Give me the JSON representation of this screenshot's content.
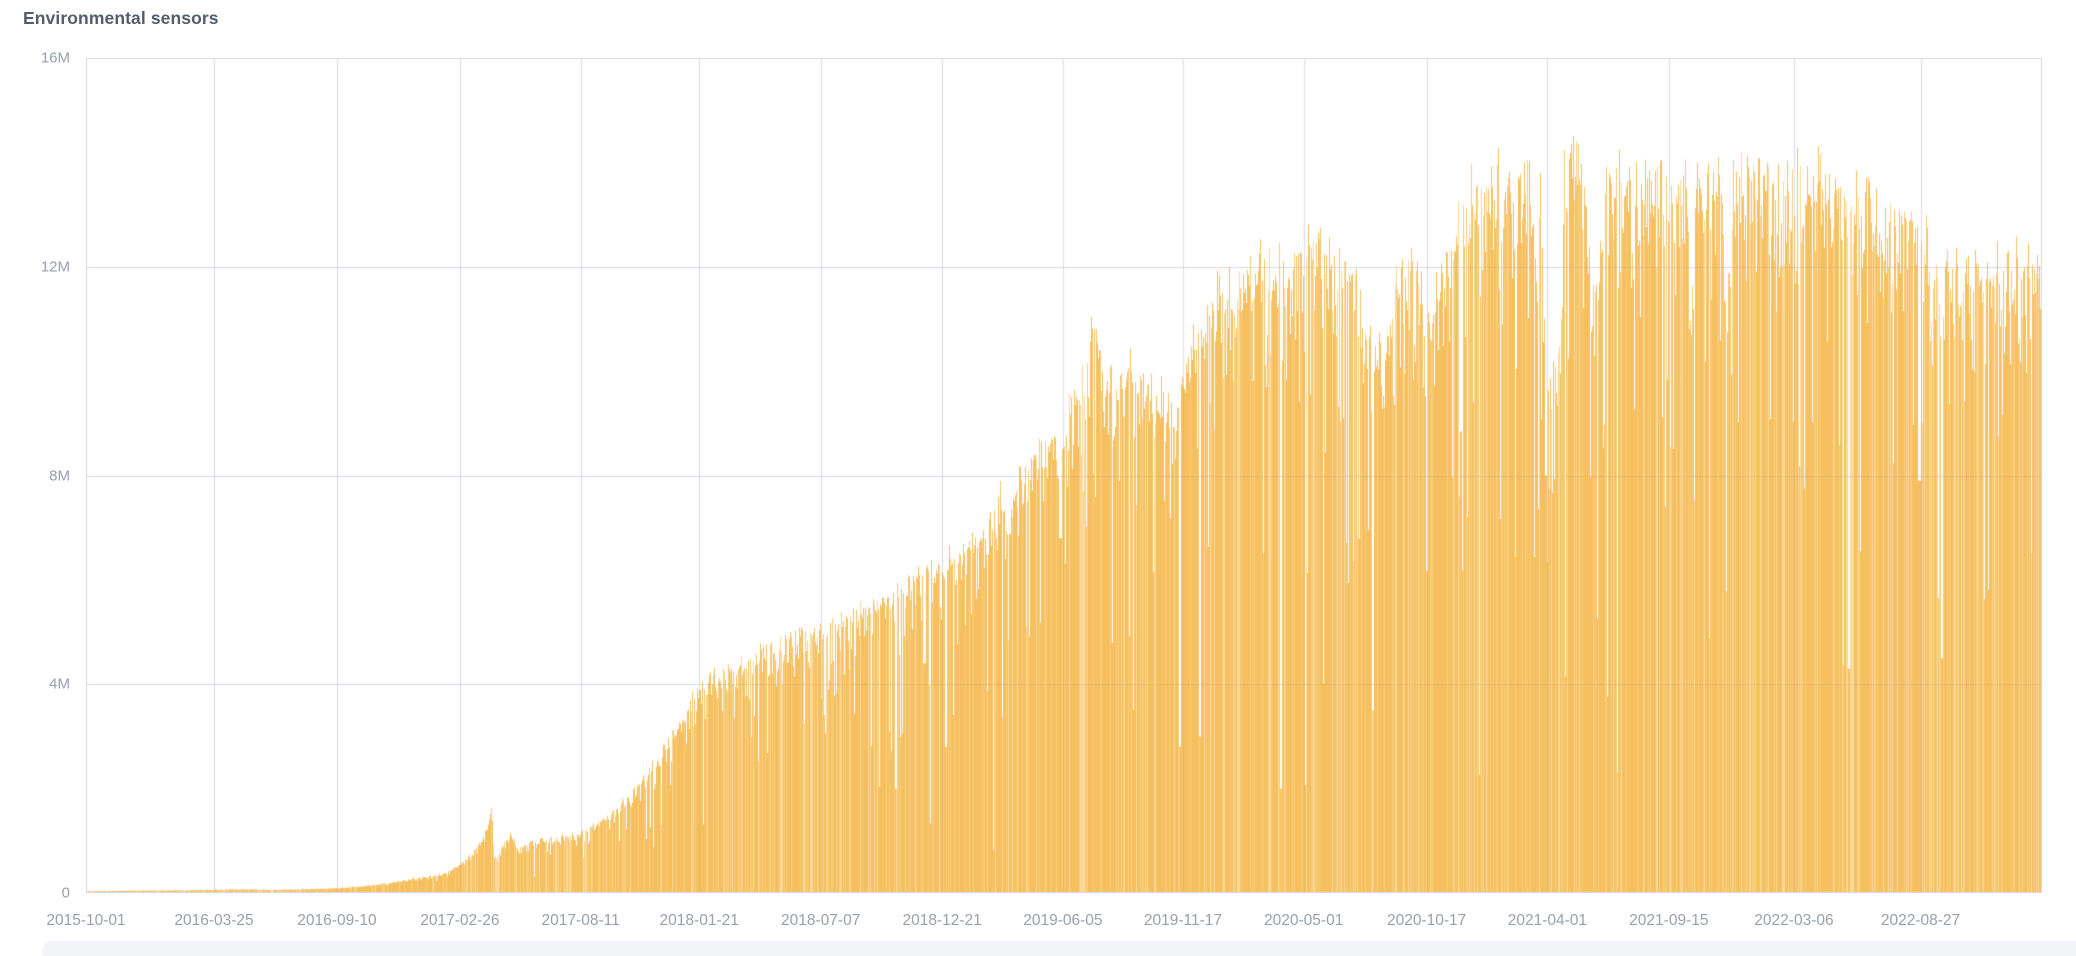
{
  "chart": {
    "title": "Environmental sensors"
  },
  "colors": {
    "bar_base": "#f5bd58",
    "bar_light": "#f8c973",
    "bar_lighter": "#fbd794",
    "gridline": "#e8e9f2",
    "plot_border": "#d9dbe7",
    "axis_label": "#9aa0ac",
    "title_text": "#555d6d",
    "bottom_strip": "#f2f4f7",
    "background": "#ffffff"
  },
  "chart_data": {
    "type": "bar",
    "title": "Environmental sensors",
    "series_name": "Environmental sensors",
    "granularity": "daily",
    "x_range": [
      "2015-10-01",
      "2023-02-10"
    ],
    "ylim": [
      0,
      16000000
    ],
    "grid": true,
    "legend": false,
    "y_tick_labels": [
      "0",
      "4M",
      "8M",
      "12M",
      "16M"
    ],
    "y_tick_values": [
      0,
      4000000,
      8000000,
      12000000,
      16000000
    ],
    "x_tick_labels": [
      "2015-10-01",
      "2016-03-25",
      "2016-09-10",
      "2017-02-26",
      "2017-08-11",
      "2018-01-21",
      "2018-07-07",
      "2018-12-21",
      "2019-06-05",
      "2019-11-17",
      "2020-05-01",
      "2020-10-17",
      "2021-04-01",
      "2021-09-15",
      "2022-03-06",
      "2022-08-27"
    ],
    "envelope_points_millions": [
      [
        "2015-10-01",
        0.035
      ],
      [
        "2015-12-15",
        0.05
      ],
      [
        "2016-02-15",
        0.055
      ],
      [
        "2016-04-01",
        0.07
      ],
      [
        "2016-05-01",
        0.075
      ],
      [
        "2016-06-15",
        0.065
      ],
      [
        "2016-08-01",
        0.08
      ],
      [
        "2016-09-10",
        0.1
      ],
      [
        "2016-10-10",
        0.13
      ],
      [
        "2016-11-10",
        0.18
      ],
      [
        "2016-12-10",
        0.25
      ],
      [
        "2016-12-30",
        0.31
      ],
      [
        "2017-01-25",
        0.36
      ],
      [
        "2017-02-12",
        0.46
      ],
      [
        "2017-02-26",
        0.58
      ],
      [
        "2017-03-15",
        0.82
      ],
      [
        "2017-04-01",
        1.15
      ],
      [
        "2017-04-10",
        1.75
      ],
      [
        "2017-04-14",
        0.72
      ],
      [
        "2017-04-25",
        0.95
      ],
      [
        "2017-05-05",
        1.2
      ],
      [
        "2017-05-18",
        0.88
      ],
      [
        "2017-06-05",
        1.05
      ],
      [
        "2017-07-05",
        1.1
      ],
      [
        "2017-08-05",
        1.18
      ],
      [
        "2017-09-05",
        1.42
      ],
      [
        "2017-10-05",
        1.78
      ],
      [
        "2017-11-05",
        2.25
      ],
      [
        "2017-12-05",
        2.95
      ],
      [
        "2018-01-01",
        3.6
      ],
      [
        "2018-01-21",
        4.15
      ],
      [
        "2018-02-15",
        4.4
      ],
      [
        "2018-03-15",
        4.62
      ],
      [
        "2018-04-15",
        4.85
      ],
      [
        "2018-05-15",
        5.05
      ],
      [
        "2018-06-15",
        5.2
      ],
      [
        "2018-07-15",
        5.35
      ],
      [
        "2018-08-15",
        5.55
      ],
      [
        "2018-09-15",
        5.8
      ],
      [
        "2018-10-15",
        6.1
      ],
      [
        "2018-11-15",
        6.4
      ],
      [
        "2018-12-21",
        6.62
      ],
      [
        "2019-01-20",
        6.9
      ],
      [
        "2019-02-15",
        7.3
      ],
      [
        "2019-03-15",
        7.9
      ],
      [
        "2019-04-15",
        8.5
      ],
      [
        "2019-05-15",
        9.0
      ],
      [
        "2019-06-05",
        9.4
      ],
      [
        "2019-06-25",
        10.1
      ],
      [
        "2019-07-10",
        10.6
      ],
      [
        "2019-07-18",
        11.85
      ],
      [
        "2019-07-26",
        10.5
      ],
      [
        "2019-08-15",
        10.2
      ],
      [
        "2019-09-05",
        10.5
      ],
      [
        "2019-09-25",
        10.15
      ],
      [
        "2019-10-15",
        10.0
      ],
      [
        "2019-11-08",
        9.6
      ],
      [
        "2019-11-22",
        10.8
      ],
      [
        "2019-12-12",
        11.4
      ],
      [
        "2019-12-30",
        11.9
      ],
      [
        "2020-01-20",
        12.1
      ],
      [
        "2020-02-15",
        12.4
      ],
      [
        "2020-03-10",
        12.6
      ],
      [
        "2020-04-10",
        12.85
      ],
      [
        "2020-06-01",
        12.9
      ],
      [
        "2020-07-10",
        12.5
      ],
      [
        "2020-07-28",
        10.7
      ],
      [
        "2020-08-18",
        11.1
      ],
      [
        "2020-09-08",
        12.35
      ],
      [
        "2020-10-02",
        12.5
      ],
      [
        "2020-10-18",
        11.2
      ],
      [
        "2020-11-03",
        12.6
      ],
      [
        "2020-11-25",
        13.5
      ],
      [
        "2020-12-18",
        14.1
      ],
      [
        "2021-01-20",
        14.35
      ],
      [
        "2021-02-20",
        14.3
      ],
      [
        "2021-03-08",
        14.5
      ],
      [
        "2021-03-16",
        12.8
      ],
      [
        "2021-03-22",
        14.4
      ],
      [
        "2021-03-30",
        10.0
      ],
      [
        "2021-04-10",
        10.5
      ],
      [
        "2021-04-19",
        10.8
      ],
      [
        "2021-04-23",
        14.6
      ],
      [
        "2021-05-02",
        15.2
      ],
      [
        "2021-05-12",
        14.9
      ],
      [
        "2021-05-22",
        14.6
      ],
      [
        "2021-05-27",
        12.2
      ],
      [
        "2021-06-10",
        11.9
      ],
      [
        "2021-06-16",
        14.2
      ],
      [
        "2021-07-10",
        14.3
      ],
      [
        "2021-09-01",
        14.15
      ],
      [
        "2021-10-08",
        14.3
      ],
      [
        "2021-10-15",
        11.1
      ],
      [
        "2021-10-22",
        14.2
      ],
      [
        "2021-11-25",
        14.4
      ],
      [
        "2021-12-04",
        11.6
      ],
      [
        "2021-12-12",
        14.45
      ],
      [
        "2022-01-15",
        14.4
      ],
      [
        "2022-03-06",
        14.45
      ],
      [
        "2022-04-10",
        14.35
      ],
      [
        "2022-05-05",
        14.0
      ],
      [
        "2022-05-25",
        13.6
      ],
      [
        "2022-06-12",
        14.15
      ],
      [
        "2022-07-03",
        13.1
      ],
      [
        "2022-07-14",
        13.95
      ],
      [
        "2022-08-08",
        13.6
      ],
      [
        "2022-09-01",
        13.15
      ],
      [
        "2022-09-22",
        12.5
      ],
      [
        "2022-10-12",
        12.35
      ],
      [
        "2022-11-08",
        12.6
      ],
      [
        "2022-12-05",
        12.45
      ],
      [
        "2023-01-10",
        12.7
      ],
      [
        "2023-02-10",
        12.4
      ]
    ],
    "deep_dip_days_millions": [
      [
        "2018-10-18",
        2.0
      ],
      [
        "2018-11-26",
        4.4
      ],
      [
        "2018-12-26",
        2.8
      ],
      [
        "2019-06-01",
        6.8
      ],
      [
        "2019-11-12",
        2.8
      ],
      [
        "2019-12-10",
        3.0
      ],
      [
        "2020-03-30",
        2.0
      ],
      [
        "2020-08-04",
        3.5
      ],
      [
        "2021-03-29",
        8.0
      ],
      [
        "2022-05-20",
        4.3
      ],
      [
        "2022-08-25",
        7.9
      ],
      [
        "2022-09-25",
        4.5
      ]
    ],
    "texture": {
      "deep_dip_rate": 0.013,
      "mid_dip_rate": 0.095,
      "small_dip_rate": 0.28,
      "scallop_period_days": 13.7,
      "scallop_depth": 0.035,
      "early_era_end_day": 620,
      "mid_era_end_day": 990
    }
  }
}
